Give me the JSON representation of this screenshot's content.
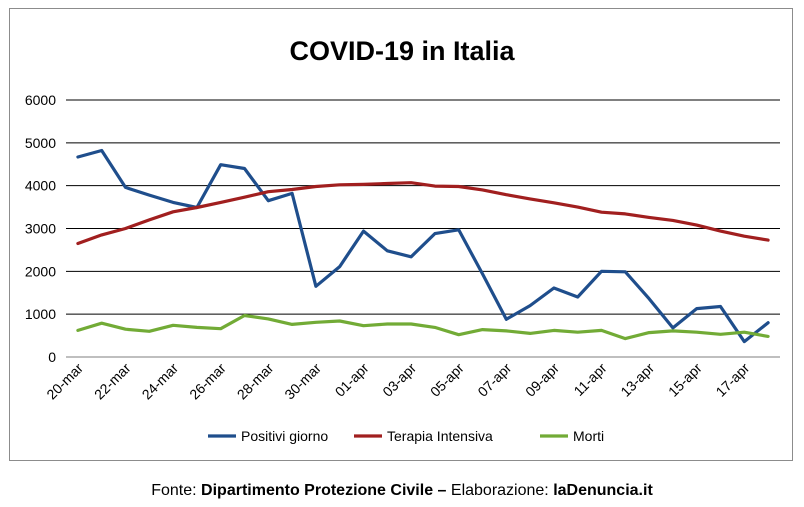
{
  "chart_data": {
    "type": "line",
    "title": "COVID-19 in Italia",
    "xlabel": "",
    "ylabel": "",
    "ylim": [
      0,
      6000
    ],
    "yticks": [
      0,
      1000,
      2000,
      3000,
      4000,
      5000,
      6000
    ],
    "grid": true,
    "legend_position": "bottom",
    "categories": [
      "20-mar",
      "21-mar",
      "22-mar",
      "23-mar",
      "24-mar",
      "25-mar",
      "26-mar",
      "27-mar",
      "28-mar",
      "29-mar",
      "30-mar",
      "31-mar",
      "01-apr",
      "02-apr",
      "03-apr",
      "04-apr",
      "05-apr",
      "06-apr",
      "07-apr",
      "08-apr",
      "09-apr",
      "10-apr",
      "11-apr",
      "12-apr",
      "13-apr",
      "14-apr",
      "15-apr",
      "16-apr",
      "17-apr",
      "18-apr"
    ],
    "xtick_labels": [
      "20-mar",
      "",
      "22-mar",
      "",
      "24-mar",
      "",
      "26-mar",
      "",
      "28-mar",
      "",
      "30-mar",
      "",
      "01-apr",
      "",
      "03-apr",
      "",
      "05-apr",
      "",
      "07-apr",
      "",
      "09-apr",
      "",
      "11-apr",
      "",
      "13-apr",
      "",
      "15-apr",
      "",
      "17-apr",
      ""
    ],
    "series": [
      {
        "name": "Positivi giorno",
        "color": "#1f4e8c",
        "values": [
          4670,
          4820,
          3960,
          3780,
          3610,
          3490,
          4490,
          4400,
          3650,
          3820,
          1650,
          2110,
          2940,
          2480,
          2340,
          2880,
          2970,
          1940,
          880,
          1200,
          1610,
          1400,
          2000,
          1990,
          1360,
          680,
          1130,
          1180,
          360,
          800
        ]
      },
      {
        "name": "Terapia Intensiva",
        "color": "#a11f1f",
        "values": [
          2650,
          2850,
          3000,
          3200,
          3390,
          3490,
          3610,
          3730,
          3860,
          3910,
          3980,
          4020,
          4030,
          4050,
          4070,
          3990,
          3980,
          3900,
          3790,
          3690,
          3600,
          3500,
          3380,
          3340,
          3260,
          3190,
          3080,
          2940,
          2820,
          2730
        ]
      },
      {
        "name": "Morti",
        "color": "#72ab36",
        "values": [
          620,
          790,
          650,
          600,
          740,
          690,
          660,
          970,
          890,
          760,
          810,
          840,
          730,
          770,
          770,
          690,
          520,
          640,
          610,
          550,
          620,
          580,
          620,
          430,
          570,
          610,
          580,
          530,
          580,
          480
        ]
      }
    ]
  },
  "caption": {
    "prefix": "Fonte: ",
    "source": "Dipartimento Protezione Civile",
    "separator": " – ",
    "elab_label": "Elaborazione: ",
    "site": "laDenuncia.it"
  }
}
